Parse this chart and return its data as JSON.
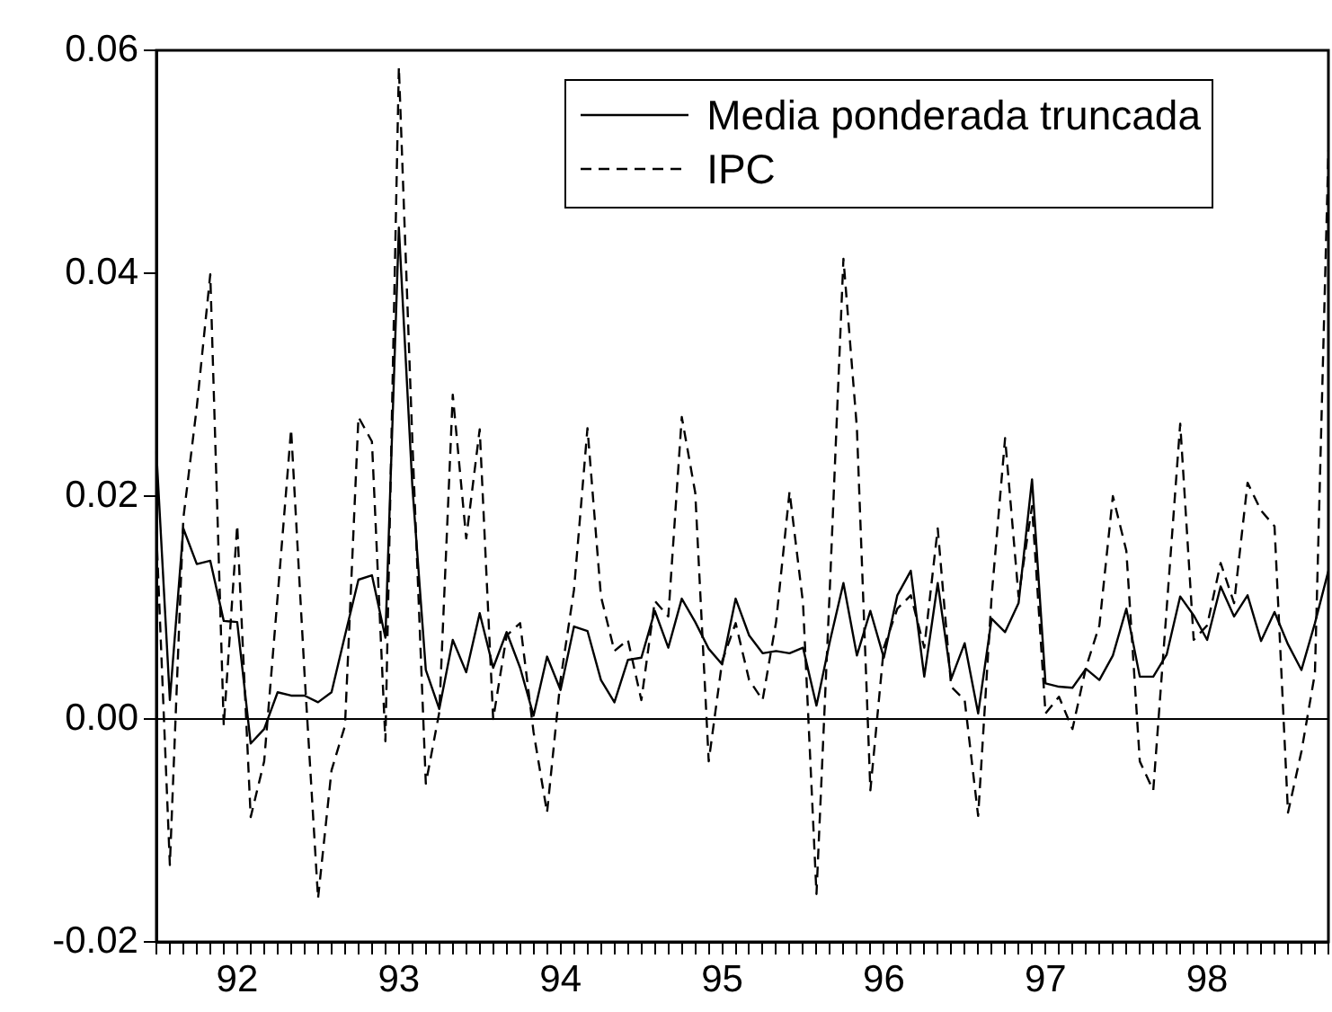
{
  "chart_data": {
    "type": "line",
    "categories": [
      null,
      null,
      null,
      null,
      null,
      null,
      "92",
      null,
      null,
      null,
      null,
      null,
      null,
      null,
      null,
      null,
      null,
      null,
      "93",
      null,
      null,
      null,
      null,
      null,
      null,
      null,
      null,
      null,
      null,
      null,
      "94",
      null,
      null,
      null,
      null,
      null,
      null,
      null,
      null,
      null,
      null,
      null,
      "95",
      null,
      null,
      null,
      null,
      null,
      null,
      null,
      null,
      null,
      null,
      null,
      "96",
      null,
      null,
      null,
      null,
      null,
      null,
      null,
      null,
      null,
      null,
      null,
      "97",
      null,
      null,
      null,
      null,
      null,
      null,
      null,
      null,
      null,
      null,
      null,
      "98",
      null,
      null,
      null,
      null,
      null,
      null,
      null,
      null,
      null
    ],
    "series": [
      {
        "name": "Media ponderada truncada",
        "color": "#000000",
        "line_style": "solid",
        "values": [
          0.024,
          0.0017,
          0.0171,
          0.0139,
          0.0142,
          0.0088,
          0.0087,
          -0.0022,
          -0.0009,
          0.0024,
          0.0021,
          0.0021,
          0.0015,
          0.0024,
          0.0075,
          0.0125,
          0.0129,
          0.0073,
          0.0441,
          0.0209,
          0.0044,
          0.0009,
          0.0071,
          0.0042,
          0.0095,
          0.0046,
          0.0078,
          0.0046,
          0.0003,
          0.0056,
          0.0026,
          0.0083,
          0.0079,
          0.0035,
          0.0015,
          0.0053,
          0.0055,
          0.0097,
          0.0064,
          0.0108,
          0.0087,
          0.0063,
          0.0049,
          0.0108,
          0.0075,
          0.0059,
          0.0061,
          0.0059,
          0.0064,
          0.0012,
          0.007,
          0.0122,
          0.0057,
          0.0097,
          0.0055,
          0.0111,
          0.0133,
          0.0038,
          0.0122,
          0.0036,
          0.0068,
          0.0005,
          0.009,
          0.0078,
          0.0104,
          0.0215,
          0.0032,
          0.0029,
          0.0028,
          0.0045,
          0.0035,
          0.0057,
          0.0099,
          0.0038,
          0.0038,
          0.0058,
          0.011,
          0.0093,
          0.0071,
          0.0119,
          0.0092,
          0.0111,
          0.007,
          0.0096,
          0.0067,
          0.0044,
          0.0086,
          0.0133
        ]
      },
      {
        "name": "IPC",
        "color": "#000000",
        "line_style": "dashed",
        "values": [
          0.0168,
          -0.0131,
          0.018,
          0.028,
          0.0399,
          -0.0006,
          0.0174,
          -0.0088,
          -0.0038,
          0.011,
          0.026,
          0.004,
          -0.0161,
          -0.0046,
          -0.0006,
          0.0271,
          0.0249,
          -0.002,
          0.0585,
          0.025,
          -0.0058,
          0.0006,
          0.0291,
          0.0162,
          0.026,
          0.0,
          0.0075,
          0.0086,
          -0.0012,
          -0.0084,
          0.0035,
          0.0116,
          0.0261,
          0.011,
          0.0061,
          0.0071,
          0.0017,
          0.0106,
          0.0092,
          0.0271,
          0.0203,
          -0.0038,
          0.0052,
          0.0086,
          0.0035,
          0.0017,
          0.0087,
          0.0204,
          0.0104,
          -0.0157,
          0.012,
          0.0413,
          0.0261,
          -0.0064,
          0.0064,
          0.0099,
          0.0111,
          0.0064,
          0.0171,
          0.0029,
          0.0017,
          -0.0087,
          0.011,
          0.0252,
          0.011,
          0.0191,
          0.0005,
          0.002,
          -0.0009,
          0.0046,
          0.0084,
          0.02,
          0.0151,
          -0.0038,
          -0.0064,
          0.01,
          0.0265,
          0.0071,
          0.0084,
          0.014,
          0.0104,
          0.0212,
          0.0187,
          0.0173,
          -0.0084,
          -0.0029,
          0.0041,
          0.051
        ]
      }
    ],
    "ylim": [
      -0.02,
      0.06
    ],
    "yticks": [
      -0.02,
      {
        "value": 0,
        "label": "0.00"
      },
      0.02,
      0.04,
      0.06
    ],
    "ref_lines": [
      {
        "axis": "y",
        "value": 0,
        "color": "#000000"
      }
    ],
    "grid": false,
    "legend": "top right",
    "marker": "none"
  }
}
